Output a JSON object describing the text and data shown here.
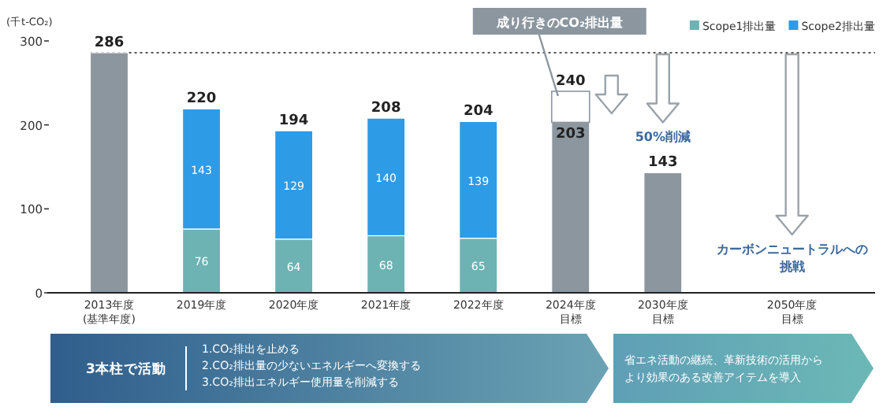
{
  "chart_data": {
    "type": "bar",
    "stacked": true,
    "ylabel": "(千t-CO₂)",
    "categories": [
      "2013年度\n(基準年度)",
      "2019年度",
      "2020年度",
      "2021年度",
      "2022年度",
      "2024年度目標",
      "2030年度目標",
      "2050年度目標"
    ],
    "series": [
      {
        "color": "#8c969f",
        "values": [
          286,
          null,
          null,
          null,
          null,
          203,
          143,
          null
        ],
        "value_labels": [
          null,
          null,
          null,
          null,
          null,
          "203",
          null,
          null
        ]
      },
      {
        "name": "Scope1排出量",
        "color": "#6db3b3",
        "values": [
          null,
          76,
          64,
          68,
          65,
          null,
          null,
          null
        ],
        "value_labels": [
          null,
          "76",
          "64",
          "68",
          "65",
          null,
          null,
          null
        ]
      },
      {
        "name": "Scope2排出量",
        "color": "#2e9be6",
        "values": [
          null,
          143,
          129,
          140,
          139,
          null,
          null,
          null
        ],
        "value_labels": [
          null,
          "143",
          "129",
          "140",
          "139",
          null,
          null,
          null
        ]
      },
      {
        "color": "#ffffff",
        "values": [
          null,
          null,
          null,
          null,
          null,
          37,
          null,
          null
        ]
      }
    ],
    "totals": [
      "286",
      "220",
      "194",
      "208",
      "204",
      "240",
      "143",
      null
    ],
    "ylim": [
      0,
      300
    ],
    "yticks": [
      0,
      100,
      200,
      300
    ],
    "grid": false,
    "legend": "top right",
    "ref_lines": [
      {
        "axis": "y",
        "value": 286,
        "line_style": "dotted",
        "color": "#555555"
      }
    ],
    "annotations": [
      {
        "text": "成り行きのCO₂排出量",
        "x": "2024年度目標",
        "y": 240
      },
      {
        "text": "50%削減",
        "x": "2030年度目標",
        "y": 143
      },
      "カーボンニュートラルへの挑戦",
      "3本柱で活動",
      "1.CO₂排出を止める\n2.CO₂排出量の少ないエネルギーへ変換する\n3.CO₂排出エネルギー使用量を削減する",
      "省エネ活動の継続、革新技術の活用からより効果のある改善アイテムを導入"
    ]
  }
}
